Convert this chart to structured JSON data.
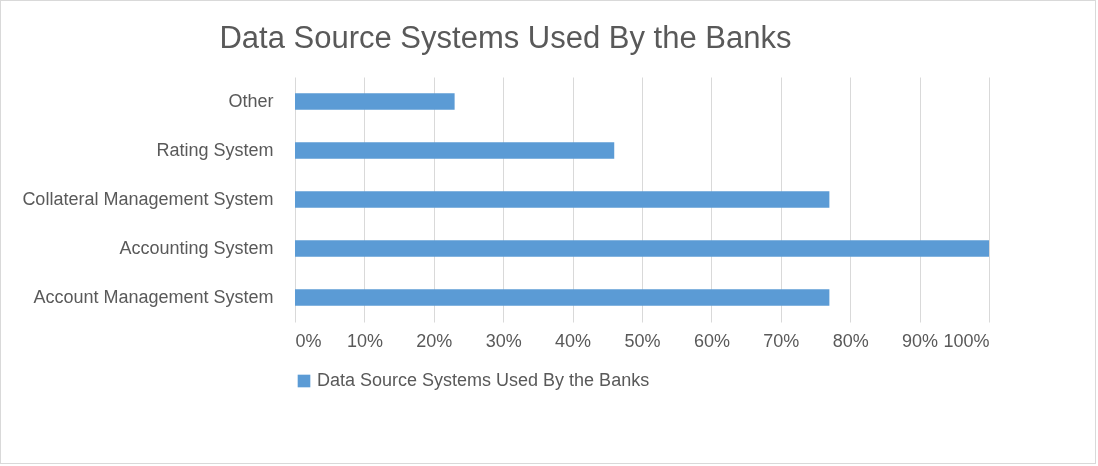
{
  "chart_data": {
    "type": "bar",
    "orientation": "horizontal",
    "title": "Data Source Systems Used By the Banks",
    "categories": [
      "Other",
      "Rating System",
      "Collateral Management System",
      "Accounting System",
      "Account Management System"
    ],
    "series": [
      {
        "name": "Data Source Systems Used By the Banks",
        "color": "#5b9bd5",
        "values": [
          23,
          46,
          77,
          100,
          77
        ]
      }
    ],
    "xlim": [
      0,
      100
    ],
    "xticks": [
      {
        "value": 0,
        "label": "0%"
      },
      {
        "value": 10,
        "label": "10%"
      },
      {
        "value": 20,
        "label": "20%"
      },
      {
        "value": 30,
        "label": "30%"
      },
      {
        "value": 40,
        "label": "40%"
      },
      {
        "value": 50,
        "label": "50%"
      },
      {
        "value": 60,
        "label": "60%"
      },
      {
        "value": 70,
        "label": "70%"
      },
      {
        "value": 80,
        "label": "80%"
      },
      {
        "value": 90,
        "label": "90%"
      },
      {
        "value": 100,
        "label": "100%"
      }
    ],
    "grid": "x",
    "legend": "bottom"
  }
}
